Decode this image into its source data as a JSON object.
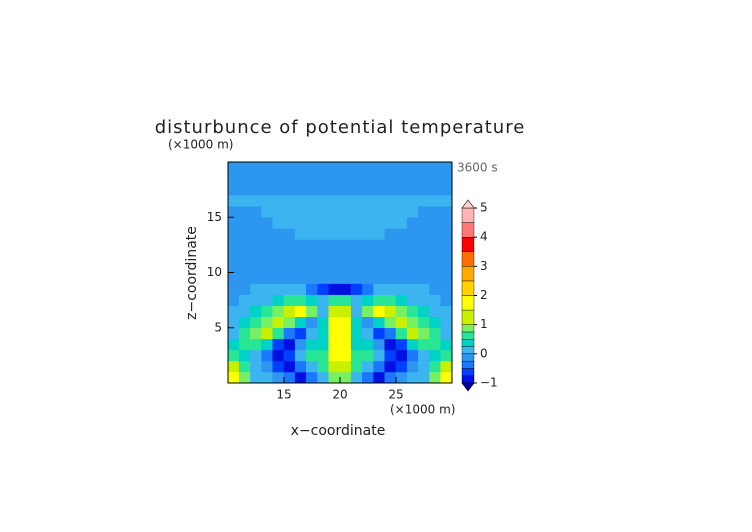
{
  "chart_data": {
    "type": "contour",
    "title": "disturbunce of potential temperature",
    "xlabel": "x−coordinate",
    "ylabel": "z−coordinate",
    "xunit": "(×1000 m)",
    "yunit": "(×1000 m)",
    "time_label": "3600 s",
    "xlim": [
      10,
      30
    ],
    "ylim": [
      0,
      20
    ],
    "xticks": [
      15,
      20,
      25
    ],
    "yticks": [
      5,
      10,
      15
    ],
    "x": [
      10.5,
      11.5,
      12.5,
      13.5,
      14.5,
      15.5,
      16.5,
      17.5,
      18.5,
      19.5,
      20.5,
      21.5,
      22.5,
      23.5,
      24.5,
      25.5,
      26.5,
      27.5,
      28.5,
      29.5
    ],
    "y": [
      0.5,
      1.5,
      2.5,
      3.5,
      4.5,
      5.5,
      6.5,
      7.5,
      8.5,
      9.5,
      10.5,
      11.5,
      12.5,
      13.5,
      14.5,
      15.5,
      16.5,
      17.5,
      18.5,
      19.5
    ],
    "z": [
      [
        1.5,
        0.8,
        0.2,
        0,
        -0.2,
        -0.5,
        -0.8,
        -0.5,
        0,
        0.8,
        0.8,
        0,
        -0.5,
        -0.8,
        -0.5,
        -0.2,
        0,
        0.2,
        0.8,
        1.5
      ],
      [
        1.2,
        0.6,
        0.2,
        -0.2,
        -0.6,
        -0.9,
        -0.4,
        0.2,
        0.6,
        1.2,
        1.2,
        0.6,
        0.2,
        -0.4,
        -0.9,
        -0.6,
        -0.2,
        0.2,
        0.6,
        1.2
      ],
      [
        0.6,
        0.4,
        0.2,
        -0.4,
        -0.8,
        -0.6,
        0,
        0.5,
        0.6,
        1.5,
        1.5,
        0.6,
        0.5,
        0,
        -0.6,
        -0.8,
        -0.4,
        0.2,
        0.4,
        0.6
      ],
      [
        0.3,
        0.5,
        0.7,
        0.3,
        -0.6,
        -0.9,
        -0.2,
        0.4,
        0.4,
        1.6,
        1.6,
        0.4,
        0.4,
        -0.2,
        -0.9,
        -0.6,
        0.3,
        0.7,
        0.5,
        0.3
      ],
      [
        0.2,
        0.6,
        0.9,
        1.0,
        0.6,
        -0.4,
        -0.7,
        0.2,
        0.3,
        1.6,
        1.6,
        0.3,
        0.2,
        -0.7,
        -0.4,
        0.6,
        1.0,
        0.9,
        0.6,
        0.2
      ],
      [
        0.1,
        0.3,
        0.6,
        0.9,
        1.1,
        0.8,
        0.4,
        -0.2,
        0.4,
        1.5,
        1.5,
        0.4,
        -0.2,
        0.4,
        0.8,
        1.1,
        0.9,
        0.6,
        0.3,
        0.1
      ],
      [
        0,
        0.1,
        0.3,
        0.5,
        0.8,
        1.1,
        1.6,
        0.9,
        0.2,
        1.2,
        1.2,
        0.2,
        0.9,
        1.6,
        1.1,
        0.8,
        0.5,
        0.3,
        0.1,
        0
      ],
      [
        -0.1,
        0,
        0.1,
        0.2,
        0.3,
        0.5,
        0.7,
        0.4,
        0.2,
        0.6,
        0.6,
        0.2,
        0.4,
        0.7,
        0.5,
        0.3,
        0.2,
        0.1,
        0,
        -0.1
      ],
      [
        -0.1,
        -0.1,
        0,
        0,
        0.1,
        0.2,
        0.1,
        -0.4,
        -0.7,
        -0.8,
        -0.8,
        -0.7,
        -0.4,
        0.1,
        0.2,
        0.1,
        0,
        0,
        -0.1,
        -0.1
      ],
      [
        -0.1,
        -0.1,
        -0.1,
        -0.1,
        -0.1,
        -0.1,
        -0.2,
        -0.2,
        -0.2,
        -0.2,
        -0.2,
        -0.2,
        -0.2,
        -0.2,
        -0.1,
        -0.1,
        -0.1,
        -0.1,
        -0.1,
        -0.1
      ],
      [
        -0.15,
        -0.15,
        -0.15,
        -0.15,
        -0.15,
        -0.15,
        -0.15,
        -0.15,
        -0.15,
        -0.15,
        -0.15,
        -0.15,
        -0.15,
        -0.15,
        -0.15,
        -0.15,
        -0.15,
        -0.15,
        -0.15,
        -0.15
      ],
      [
        -0.15,
        -0.15,
        -0.15,
        -0.15,
        -0.15,
        -0.15,
        -0.15,
        -0.15,
        -0.15,
        -0.15,
        -0.15,
        -0.15,
        -0.15,
        -0.15,
        -0.15,
        -0.15,
        -0.15,
        -0.15,
        -0.15,
        -0.15
      ],
      [
        -0.15,
        -0.15,
        -0.15,
        -0.15,
        -0.15,
        -0.15,
        -0.15,
        -0.15,
        -0.15,
        -0.15,
        -0.15,
        -0.15,
        -0.15,
        -0.15,
        -0.15,
        -0.15,
        -0.15,
        -0.15,
        -0.15,
        -0.15
      ],
      [
        -0.15,
        -0.15,
        -0.15,
        -0.15,
        -0.15,
        -0.15,
        0.05,
        0.05,
        0.05,
        0.05,
        0.05,
        0.05,
        0.05,
        0.05,
        -0.15,
        -0.15,
        -0.15,
        -0.15,
        -0.15,
        -0.15
      ],
      [
        -0.15,
        -0.15,
        -0.15,
        -0.15,
        0.05,
        0.05,
        0.05,
        0.05,
        0.05,
        0.05,
        0.05,
        0.05,
        0.05,
        0.05,
        0.05,
        0.05,
        -0.15,
        -0.15,
        -0.15,
        -0.15
      ],
      [
        -0.15,
        -0.15,
        -0.15,
        0.05,
        0.05,
        0.05,
        0.05,
        0.05,
        0.05,
        0.05,
        0.05,
        0.05,
        0.05,
        0.05,
        0.05,
        0.05,
        0.05,
        -0.15,
        -0.15,
        -0.15
      ],
      [
        0.05,
        0.05,
        0.05,
        0.05,
        0.05,
        0.05,
        0.05,
        0.05,
        0.05,
        0.05,
        0.05,
        0.05,
        0.05,
        0.05,
        0.05,
        0.05,
        0.05,
        0.05,
        0.05,
        0.05
      ],
      [
        -0.1,
        -0.1,
        -0.1,
        -0.1,
        -0.1,
        -0.1,
        -0.1,
        -0.1,
        -0.1,
        -0.1,
        -0.1,
        -0.1,
        -0.1,
        -0.1,
        -0.1,
        -0.1,
        -0.1,
        -0.1,
        -0.1,
        -0.1
      ],
      [
        -0.1,
        -0.1,
        -0.1,
        -0.1,
        -0.1,
        -0.1,
        -0.1,
        -0.1,
        -0.1,
        -0.1,
        -0.1,
        -0.1,
        -0.1,
        -0.1,
        -0.1,
        -0.1,
        -0.1,
        -0.1,
        -0.1,
        -0.1
      ],
      [
        -0.1,
        -0.1,
        -0.1,
        -0.1,
        -0.1,
        -0.1,
        -0.1,
        -0.1,
        -0.1,
        -0.1,
        -0.1,
        -0.1,
        -0.1,
        -0.1,
        -0.1,
        -0.1,
        -0.1,
        -0.1,
        -0.1,
        -0.1
      ]
    ],
    "levels": [
      -1,
      -0.75,
      -0.5,
      -0.25,
      0,
      0.25,
      0.5,
      0.75,
      1,
      1.5,
      2,
      2.5,
      3,
      3.5,
      4,
      4.5,
      5
    ],
    "colors": [
      "#0000a0",
      "#0010e0",
      "#0040ff",
      "#1a78ff",
      "#2c96f0",
      "#3cb4f0",
      "#00d2c8",
      "#28e696",
      "#78f064",
      "#c8f000",
      "#ffff00",
      "#ffd200",
      "#ffaa00",
      "#ff6e00",
      "#ff0000",
      "#ff7878",
      "#ffb4b4",
      "#ffd2d2"
    ],
    "cbar_ticks": [
      {
        "value": -1,
        "label": "−1"
      },
      0,
      1,
      2,
      3,
      4,
      5
    ]
  }
}
